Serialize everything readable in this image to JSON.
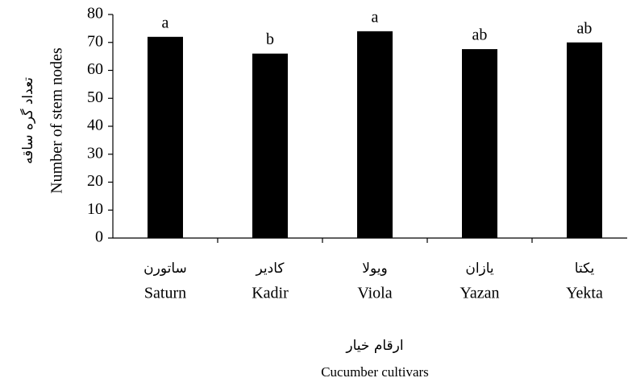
{
  "chart_data": {
    "type": "bar",
    "categories": [
      "Saturn",
      "Kadir",
      "Viola",
      "Yazan",
      "Yekta"
    ],
    "categories_fa": [
      "ساتورن",
      "کادیر",
      "ویولا",
      "یازان",
      "یکتا"
    ],
    "values": [
      72,
      66,
      74,
      67.6,
      70
    ],
    "annotations": [
      "a",
      "b",
      "a",
      "ab",
      "ab"
    ],
    "color": "#000000",
    "ylim": [
      0,
      80
    ],
    "yticks": [
      0,
      10,
      20,
      30,
      40,
      50,
      60,
      70,
      80
    ],
    "y_label": "Number of stem nodes",
    "y_label_fa": "تعداد گره ساقه",
    "x_label": "Cucumber cultivars",
    "x_label_fa": "ارقام خیار",
    "grid": false
  }
}
